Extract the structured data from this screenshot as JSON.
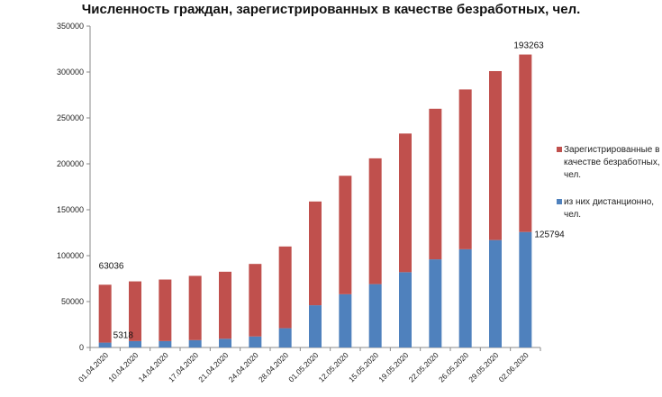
{
  "chart_data": {
    "type": "bar",
    "stacked": true,
    "title": "Численность граждан, зарегистрированных в качестве безработных, чел.",
    "categories": [
      "01.04.2020",
      "10.04.2020",
      "14.04.2020",
      "17.04.2020",
      "21.04.2020",
      "24.04.2020",
      "28.04.2020",
      "01.05.2020",
      "12.05.2020",
      "15.05.2020",
      "19.05.2020",
      "22.05.2020",
      "26.05.2020",
      "29.05.2020",
      "02.06.2020"
    ],
    "series": [
      {
        "name": "из них дистанционно, чел.",
        "color": "#4f81bd",
        "values": [
          5318,
          7000,
          7000,
          8000,
          9500,
          12000,
          21000,
          46000,
          58000,
          69000,
          82000,
          96000,
          107000,
          117000,
          125794
        ]
      },
      {
        "name": "Зарегистрированные в качестве безработных, чел.",
        "color": "#c0504d",
        "values": [
          63036,
          65000,
          67000,
          70000,
          73000,
          79000,
          89000,
          113000,
          129000,
          137000,
          151000,
          164000,
          174000,
          184000,
          193263
        ]
      }
    ],
    "data_labels": [
      {
        "text": "63036"
      },
      {
        "text": "5318"
      },
      {
        "text": "193263"
      },
      {
        "text": "125794"
      }
    ],
    "ylim": [
      0,
      350000
    ],
    "yticks": [
      "0",
      "50000",
      "100000",
      "150000",
      "200000",
      "250000",
      "300000",
      "350000"
    ],
    "legend_lines": [
      {
        "series": 1,
        "lines": [
          "Зарегистрированные в",
          "качестве безработных,",
          "чел."
        ]
      },
      {
        "series": 0,
        "lines": [
          "из них дистанционно,",
          "чел."
        ]
      }
    ],
    "legend_position": "right",
    "grid": false
  }
}
